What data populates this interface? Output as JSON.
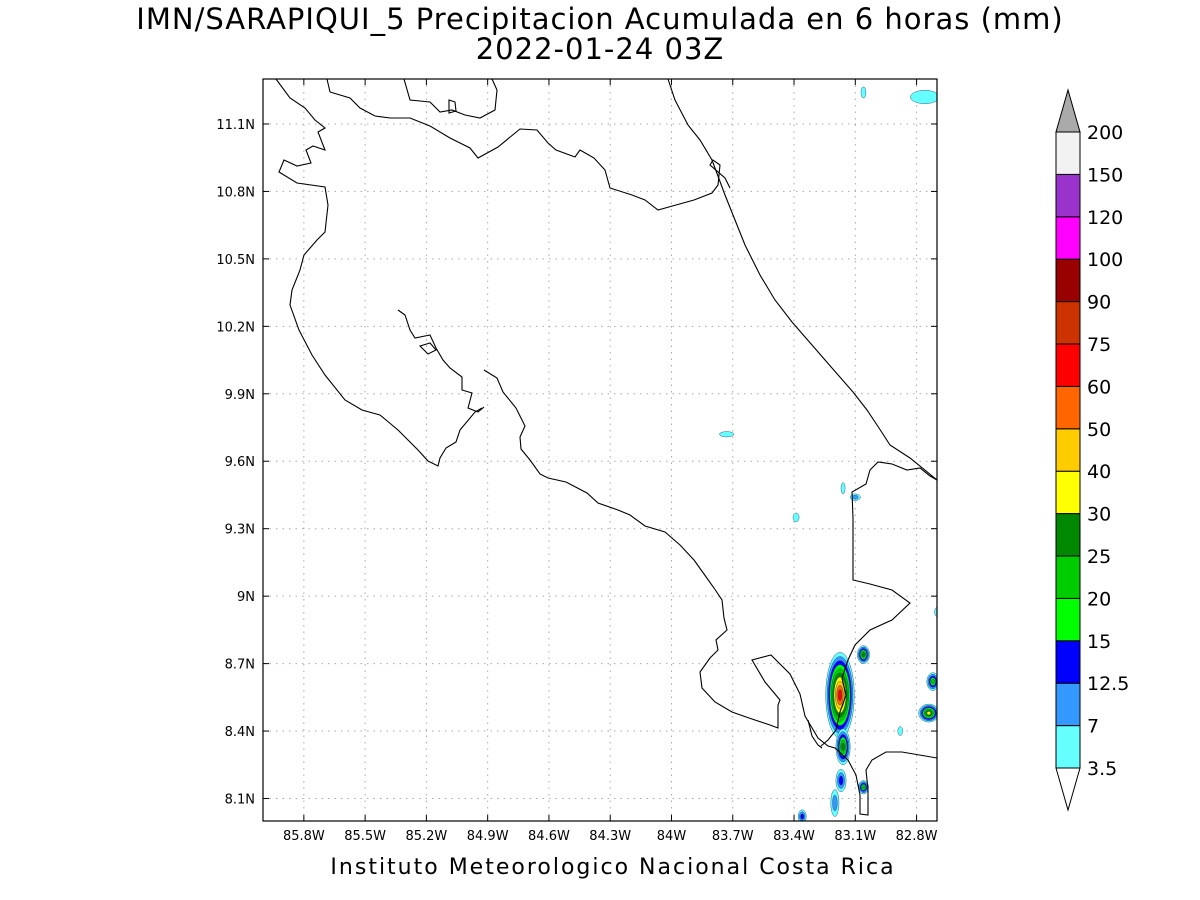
{
  "title": {
    "line1": "IMN/SARAPIQUI_5 Precipitacion Acumulada en 6 horas (mm)",
    "line2": "2022-01-24 03Z"
  },
  "footer": "Instituto Meteorologico Nacional Costa Rica",
  "map": {
    "lon_range": [
      -86.0,
      -82.7
    ],
    "lat_range": [
      8.0,
      11.3
    ],
    "grid": true,
    "x_ticks": [
      {
        "value": -85.8,
        "label": "85.8W"
      },
      {
        "value": -85.5,
        "label": "85.5W"
      },
      {
        "value": -85.2,
        "label": "85.2W"
      },
      {
        "value": -84.9,
        "label": "84.9W"
      },
      {
        "value": -84.6,
        "label": "84.6W"
      },
      {
        "value": -84.3,
        "label": "84.3W"
      },
      {
        "value": -84.0,
        "label": "84W"
      },
      {
        "value": -83.7,
        "label": "83.7W"
      },
      {
        "value": -83.4,
        "label": "83.4W"
      },
      {
        "value": -83.1,
        "label": "83.1W"
      },
      {
        "value": -82.8,
        "label": "82.8W"
      }
    ],
    "y_ticks": [
      {
        "value": 8.1,
        "label": "8.1N"
      },
      {
        "value": 8.4,
        "label": "8.4N"
      },
      {
        "value": 8.7,
        "label": "8.7N"
      },
      {
        "value": 9.0,
        "label": "9N"
      },
      {
        "value": 9.3,
        "label": "9.3N"
      },
      {
        "value": 9.6,
        "label": "9.6N"
      },
      {
        "value": 9.9,
        "label": "9.9N"
      },
      {
        "value": 10.2,
        "label": "10.2N"
      },
      {
        "value": 10.5,
        "label": "10.5N"
      },
      {
        "value": 10.8,
        "label": "10.8N"
      },
      {
        "value": 11.1,
        "label": "11.1N"
      }
    ]
  },
  "legend": {
    "levels": [
      "3.5",
      "7",
      "12.5",
      "15",
      "20",
      "25",
      "30",
      "40",
      "50",
      "60",
      "75",
      "90",
      "100",
      "120",
      "150",
      "200"
    ],
    "colors": [
      "#66ffff",
      "#3399ff",
      "#0000ff",
      "#00ff00",
      "#00cc00",
      "#008800",
      "#ffff00",
      "#ffcc00",
      "#ff6600",
      "#ff0000",
      "#cc3300",
      "#990000",
      "#ff00ff",
      "#9933cc",
      "#f2f2f2"
    ],
    "under_color": "#ffffff",
    "over_color": "#aaaaaa"
  },
  "precip_cells": [
    {
      "lon": -83.175,
      "lat": 8.56,
      "rx": 0.07,
      "ry": 0.19,
      "level": 60
    },
    {
      "lon": -83.16,
      "lat": 8.33,
      "rx": 0.035,
      "ry": 0.08,
      "level": 25
    },
    {
      "lon": -83.06,
      "lat": 8.74,
      "rx": 0.03,
      "ry": 0.04,
      "level": 25
    },
    {
      "lon": -82.74,
      "lat": 8.48,
      "rx": 0.05,
      "ry": 0.04,
      "level": 30
    },
    {
      "lon": -82.72,
      "lat": 8.62,
      "rx": 0.03,
      "ry": 0.04,
      "level": 20
    },
    {
      "lon": -83.17,
      "lat": 8.18,
      "rx": 0.025,
      "ry": 0.05,
      "level": 12.5
    },
    {
      "lon": -83.06,
      "lat": 8.15,
      "rx": 0.025,
      "ry": 0.03,
      "level": 20
    },
    {
      "lon": -83.2,
      "lat": 8.08,
      "rx": 0.02,
      "ry": 0.06,
      "level": 7
    },
    {
      "lon": -83.36,
      "lat": 8.02,
      "rx": 0.02,
      "ry": 0.03,
      "level": 12.5
    },
    {
      "lon": -83.1,
      "lat": 9.44,
      "rx": 0.025,
      "ry": 0.015,
      "level": 7
    },
    {
      "lon": -83.39,
      "lat": 9.35,
      "rx": 0.015,
      "ry": 0.02,
      "level": 3.5
    },
    {
      "lon": -83.16,
      "lat": 9.48,
      "rx": 0.01,
      "ry": 0.025,
      "level": 3.5
    },
    {
      "lon": -83.73,
      "lat": 9.72,
      "rx": 0.035,
      "ry": 0.012,
      "level": 3.5
    },
    {
      "lon": -82.76,
      "lat": 11.22,
      "rx": 0.07,
      "ry": 0.03,
      "level": 3.5
    },
    {
      "lon": -83.06,
      "lat": 11.24,
      "rx": 0.012,
      "ry": 0.025,
      "level": 3.5
    },
    {
      "lon": -82.88,
      "lat": 8.4,
      "rx": 0.012,
      "ry": 0.02,
      "level": 3.5
    },
    {
      "lon": -82.7,
      "lat": 8.93,
      "rx": 0.012,
      "ry": 0.02,
      "level": 3.5
    }
  ]
}
